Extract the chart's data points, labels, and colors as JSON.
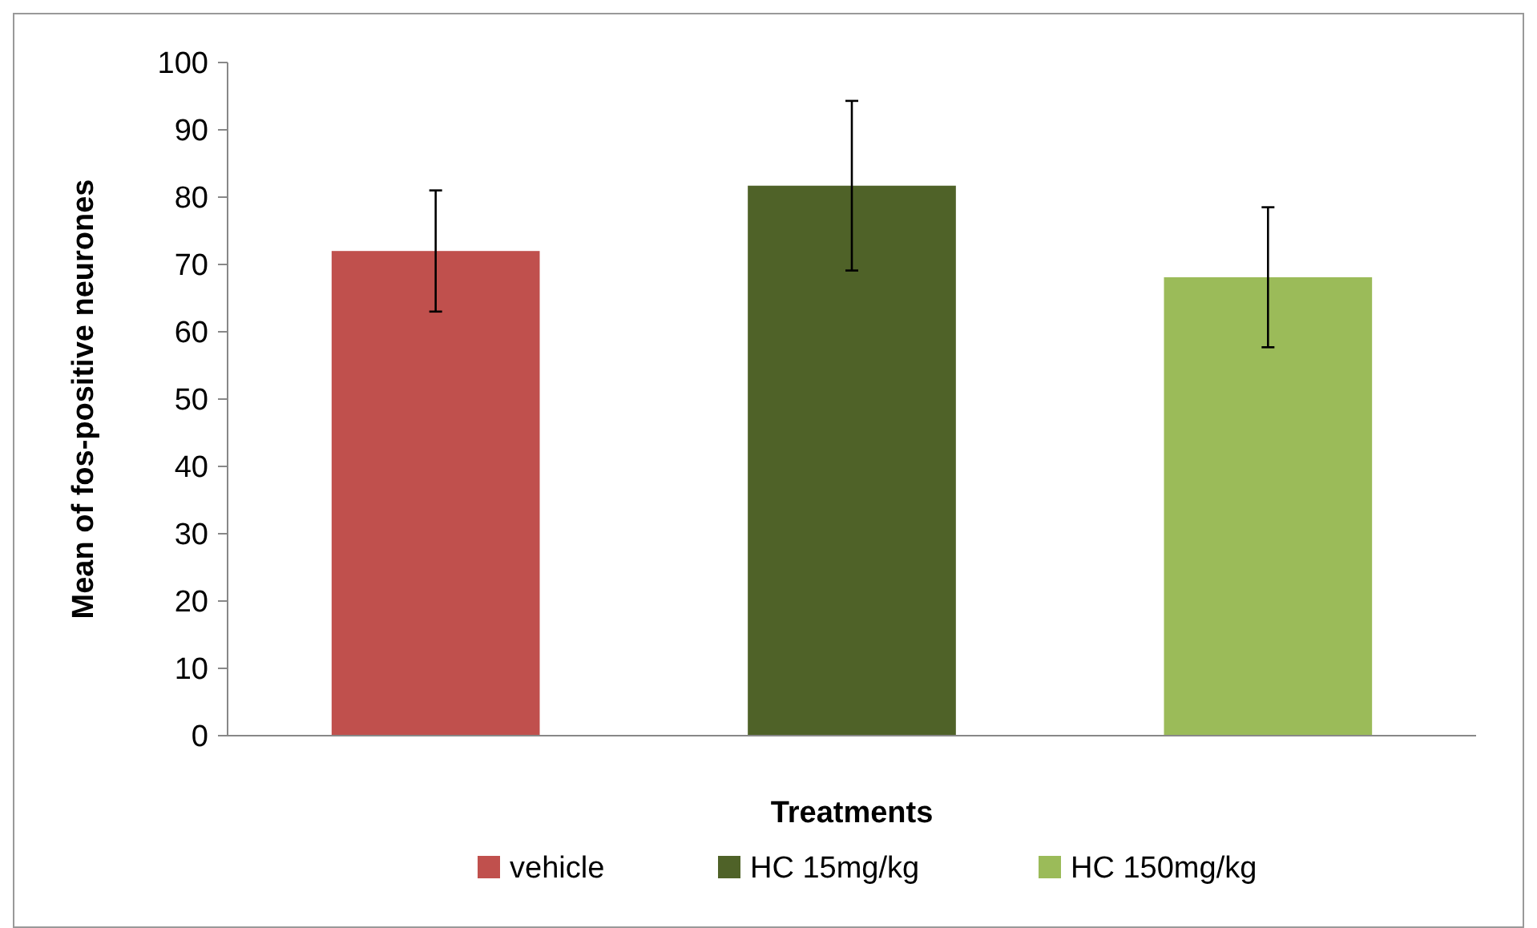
{
  "chart_data": {
    "type": "bar",
    "xlabel": "Treatments",
    "ylabel": "Mean of fos-positive neurones",
    "categories": [
      null,
      null,
      null
    ],
    "series": [
      {
        "name": "vehicle",
        "color": "#c0504d",
        "values": [
          72,
          null,
          null
        ],
        "errors": [
          9,
          null,
          null
        ]
      },
      {
        "name": "HC 15mg/kg",
        "color": "#4f6228",
        "values": [
          null,
          81.7,
          null
        ],
        "errors": [
          null,
          12.6,
          null
        ]
      },
      {
        "name": "HC 150mg/kg",
        "color": "#9bbb59",
        "values": [
          null,
          null,
          68.1
        ],
        "errors": [
          null,
          null,
          10.4
        ]
      }
    ],
    "ylim": [
      0,
      100
    ],
    "yticks": [
      0,
      10,
      20,
      30,
      40,
      50,
      60,
      70,
      80,
      90,
      100
    ],
    "grid": false,
    "legend": "bottom"
  }
}
